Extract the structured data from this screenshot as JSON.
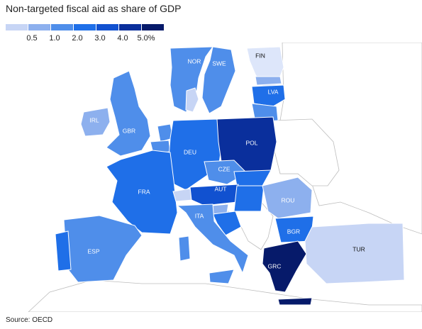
{
  "title": "Non-targeted fiscal aid as share of GDP",
  "legend": {
    "colors": [
      "#c7d5f5",
      "#8db0ee",
      "#4f8eea",
      "#1f6fe8",
      "#1151d0",
      "#0a2f9c",
      "#061a6a"
    ],
    "ticks": [
      "0.5",
      "1.0",
      "2.0",
      "3.0",
      "4.0",
      "5.0%"
    ]
  },
  "palette": {
    "outline": "#bdbdbd",
    "land": "#ffffff",
    "label_light": "#ffffff",
    "label_dark": "#111111"
  },
  "countries": [
    {
      "code": "FIN",
      "label": "FIN",
      "color": "#dde6fa",
      "bind_label": true
    },
    {
      "code": "NOR",
      "label": "NOR",
      "color": "#4f8eea"
    },
    {
      "code": "SWE",
      "label": "SWE",
      "color": "#4f8eea"
    },
    {
      "code": "LVA",
      "label": "LVA",
      "color": "#1f6fe8"
    },
    {
      "code": "IRL",
      "label": "IRL",
      "color": "#8db0ee"
    },
    {
      "code": "GBR",
      "label": "GBR",
      "color": "#4f8eea"
    },
    {
      "code": "DEU",
      "label": "DEU",
      "color": "#1f6fe8"
    },
    {
      "code": "POL",
      "label": "POL",
      "color": "#0a2f9c"
    },
    {
      "code": "CZE",
      "label": "CZE",
      "color": "#4f8eea"
    },
    {
      "code": "FRA",
      "label": "FRA",
      "color": "#1f6fe8"
    },
    {
      "code": "AUT",
      "label": "AUT",
      "color": "#1151d0"
    },
    {
      "code": "ROU",
      "label": "ROU",
      "color": "#8db0ee"
    },
    {
      "code": "ITA",
      "label": "ITA",
      "color": "#4f8eea"
    },
    {
      "code": "BGR",
      "label": "BGR",
      "color": "#1f6fe8"
    },
    {
      "code": "ESP",
      "label": "ESP",
      "color": "#4f8eea"
    },
    {
      "code": "TUR",
      "label": "TUR",
      "color": "#c7d5f5"
    },
    {
      "code": "GRC",
      "label": "GRC",
      "color": "#061a6a"
    }
  ],
  "source": "Source: OECD"
}
